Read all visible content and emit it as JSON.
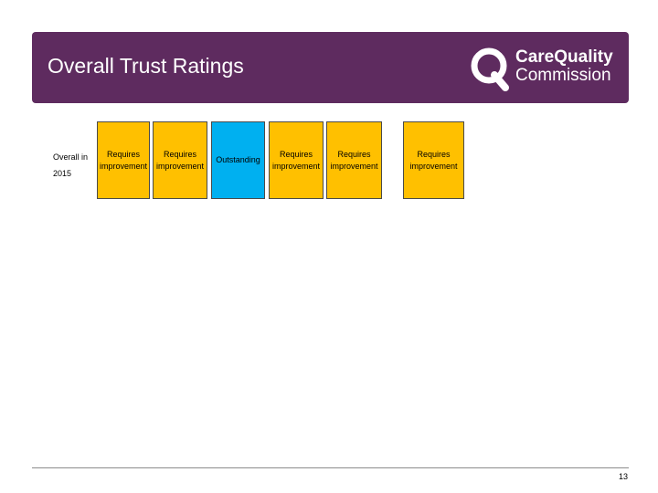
{
  "header": {
    "title": "Overall Trust Ratings",
    "logo": {
      "line1": "CareQuality",
      "line2": "Commission"
    }
  },
  "ratings_row": {
    "label_line1": "Overall in",
    "label_line2": "2015",
    "cells": [
      {
        "line1": "Requires",
        "line2": "improvement"
      },
      {
        "line1": "Requires",
        "line2": "improvement"
      },
      {
        "line1": "Outstanding",
        "line2": ""
      },
      {
        "line1": "Requires",
        "line2": "improvement"
      },
      {
        "line1": "Requires",
        "line2": "improvement"
      },
      {
        "line1": "Requires",
        "line2": "improvement"
      }
    ]
  },
  "footer": {
    "page_number": "13"
  },
  "colors": {
    "banner": "#5e2b5f",
    "requires_improvement": "#ffc000",
    "outstanding": "#00b0f0"
  }
}
